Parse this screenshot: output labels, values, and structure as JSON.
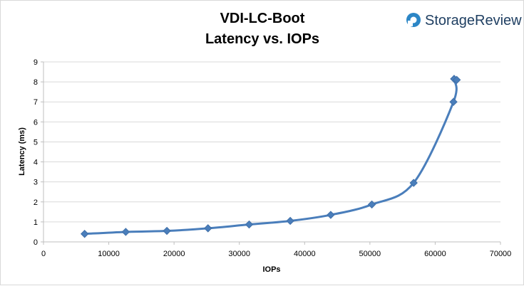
{
  "chart_data": {
    "type": "scatter",
    "title": "VDI-LC-Boot",
    "subtitle": "Latency vs. IOPs",
    "xlabel": "IOPs",
    "ylabel": "Latency (ms)",
    "xlim": [
      0,
      70000
    ],
    "ylim": [
      0,
      9
    ],
    "x_ticks": [
      0,
      10000,
      20000,
      30000,
      40000,
      50000,
      60000,
      70000
    ],
    "y_ticks": [
      0,
      1,
      2,
      3,
      4,
      5,
      6,
      7,
      8,
      9
    ],
    "grid": "horizontal",
    "smooth_line": true,
    "marker": "diamond",
    "series": [
      {
        "color": "#4a7ebb",
        "x": [
          6300,
          12600,
          18900,
          25200,
          31500,
          37800,
          44000,
          50300,
          56700,
          62800,
          62900,
          63300
        ],
        "y": [
          0.4,
          0.5,
          0.55,
          0.68,
          0.87,
          1.05,
          1.35,
          1.87,
          2.95,
          7.0,
          8.15,
          8.1
        ]
      }
    ]
  },
  "branding": {
    "text": "StorageReview",
    "logo_icon": "storagereview-logo-icon",
    "colors": {
      "text": "#1f3f62",
      "logo": "#2c86c6"
    }
  }
}
